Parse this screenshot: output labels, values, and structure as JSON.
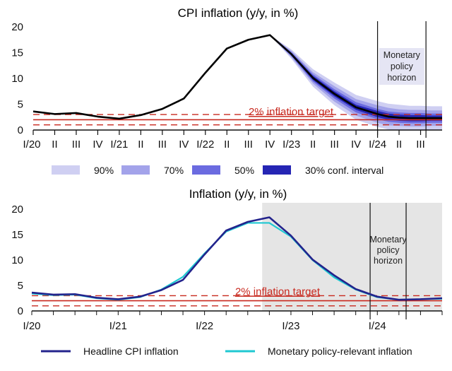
{
  "colors": {
    "fan_90": "#cfcff2",
    "fan_70": "#a3a3ea",
    "fan_50": "#6b6be0",
    "fan_30": "#2525b4",
    "forecast_line": "#000000",
    "target_red": "#c8281e",
    "headline_line": "#23238c",
    "policy_line": "#1fc8d2",
    "shade": "#e5e5e5"
  },
  "chart_data": [
    {
      "type": "line",
      "title": "CPI inflation (y/y, in %)",
      "ylim": [
        0,
        20
      ],
      "yticks": [
        "0",
        "5",
        "10",
        "15",
        "20"
      ],
      "xlim": [
        0,
        19
      ],
      "xticks": [
        "I/20",
        "II",
        "III",
        "IV",
        "I/21",
        "II",
        "III",
        "IV",
        "I/22",
        "II",
        "III",
        "IV",
        "I/23",
        "II",
        "III",
        "IV",
        "I/24",
        "II",
        "III"
      ],
      "series": [
        {
          "name": "CPI inflation",
          "x": [
            0,
            1,
            2,
            3,
            4,
            5,
            6,
            7,
            8,
            9,
            10,
            11,
            12,
            13,
            14,
            15,
            16,
            16.5,
            17,
            17.5,
            18,
            18.5,
            19
          ],
          "values": [
            3.6,
            3.1,
            3.3,
            2.6,
            2.2,
            2.9,
            4.1,
            6.1,
            11.1,
            15.8,
            17.5,
            18.4,
            14.7,
            10.1,
            7.0,
            4.4,
            3.1,
            2.6,
            2.4,
            2.3,
            2.3,
            2.3,
            2.3
          ]
        }
      ],
      "fan_start_x": 11,
      "fan_x": [
        11,
        12,
        13,
        14,
        15,
        16,
        16.5,
        17,
        17.5,
        18,
        18.5,
        19
      ],
      "fan_half_widths": {
        "90%": [
          0,
          0.9,
          1.7,
          2.2,
          2.4,
          2.5,
          2.5,
          2.5,
          2.4,
          2.4,
          2.3,
          2.3
        ],
        "70%": [
          0,
          0.6,
          1.1,
          1.5,
          1.6,
          1.7,
          1.7,
          1.6,
          1.6,
          1.6,
          1.5,
          1.5
        ],
        "50%": [
          0,
          0.4,
          0.7,
          0.9,
          1.0,
          1.0,
          1.0,
          1.0,
          1.0,
          1.0,
          0.9,
          0.9
        ],
        "30%": [
          0,
          0.2,
          0.4,
          0.5,
          0.5,
          0.6,
          0.6,
          0.6,
          0.6,
          0.6,
          0.5,
          0.5
        ]
      },
      "inflation_target": 2,
      "tolerance_band": [
        1,
        3
      ],
      "target_label": "2% inflation target",
      "horizon_x": [
        16,
        18.25
      ],
      "horizon_label": [
        "Monetary",
        "policy",
        "horizon"
      ]
    },
    {
      "type": "line",
      "title": "Inflation (y/y, in %)",
      "ylim": [
        0,
        20
      ],
      "yticks": [
        "0",
        "5",
        "10",
        "15",
        "20"
      ],
      "xlim": [
        0,
        57
      ],
      "xticks": [
        {
          "x": 0,
          "label": "I/20"
        },
        {
          "x": 12,
          "label": "I/21"
        },
        {
          "x": 24,
          "label": "I/22"
        },
        {
          "x": 36,
          "label": "I/23"
        },
        {
          "x": 48,
          "label": "I/24"
        }
      ],
      "series": [
        {
          "name": "Headline CPI inflation",
          "x": [
            0,
            3,
            6,
            9,
            12,
            15,
            18,
            21,
            24,
            27,
            30,
            33,
            36,
            39,
            42,
            45,
            48,
            51,
            54,
            57
          ],
          "values": [
            3.6,
            3.2,
            3.3,
            2.6,
            2.3,
            2.8,
            4.1,
            6.1,
            11.1,
            15.8,
            17.5,
            18.4,
            14.8,
            10.1,
            7.0,
            4.3,
            2.8,
            2.2,
            2.3,
            2.5
          ]
        },
        {
          "name": "Monetary policy-relevant inflation",
          "x": [
            0,
            3,
            6,
            9,
            12,
            15,
            18,
            21,
            24,
            27,
            30,
            33,
            36,
            39,
            42,
            45,
            48,
            51,
            54,
            57
          ],
          "values": [
            3.4,
            3.1,
            3.2,
            2.5,
            2.2,
            2.7,
            4.2,
            6.7,
            11.3,
            15.6,
            17.3,
            17.3,
            14.6,
            10.0,
            6.6,
            4.2,
            2.7,
            2.2,
            2.3,
            2.4
          ]
        }
      ],
      "shaded_from_x": 32,
      "inflation_target": 2,
      "tolerance_band": [
        1,
        3
      ],
      "target_label": "2% inflation target",
      "horizon_x": [
        47,
        52
      ],
      "horizon_label": [
        "Monetary",
        "policy",
        "horizon"
      ]
    }
  ],
  "legend_top": [
    "90%",
    "70%",
    "50%",
    "30% conf. interval"
  ],
  "legend_bottom": [
    "Headline CPI inflation",
    "Monetary policy-relevant inflation"
  ]
}
